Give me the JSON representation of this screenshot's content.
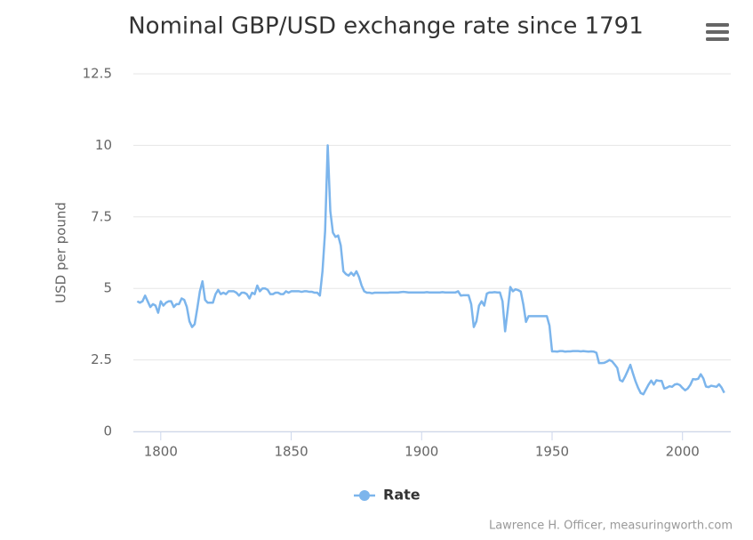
{
  "chart_data": {
    "type": "line",
    "title": "Nominal GBP/USD exchange rate since 1791",
    "y_label": "USD per pound",
    "credits": "Lawrence H. Officer, measuringworth.com",
    "x": [
      1791,
      1792,
      1793,
      1794,
      1795,
      1796,
      1797,
      1798,
      1799,
      1800,
      1801,
      1802,
      1803,
      1804,
      1805,
      1806,
      1807,
      1808,
      1809,
      1810,
      1811,
      1812,
      1813,
      1814,
      1815,
      1816,
      1817,
      1818,
      1819,
      1820,
      1821,
      1822,
      1823,
      1824,
      1825,
      1826,
      1827,
      1828,
      1829,
      1830,
      1831,
      1832,
      1833,
      1834,
      1835,
      1836,
      1837,
      1838,
      1839,
      1840,
      1841,
      1842,
      1843,
      1844,
      1845,
      1846,
      1847,
      1848,
      1849,
      1850,
      1851,
      1852,
      1853,
      1854,
      1855,
      1856,
      1857,
      1858,
      1859,
      1860,
      1861,
      1862,
      1863,
      1864,
      1865,
      1866,
      1867,
      1868,
      1869,
      1870,
      1871,
      1872,
      1873,
      1874,
      1875,
      1876,
      1877,
      1878,
      1879,
      1880,
      1881,
      1882,
      1883,
      1884,
      1885,
      1886,
      1887,
      1888,
      1889,
      1890,
      1891,
      1892,
      1893,
      1894,
      1895,
      1896,
      1897,
      1898,
      1899,
      1900,
      1901,
      1902,
      1903,
      1904,
      1905,
      1906,
      1907,
      1908,
      1909,
      1910,
      1911,
      1912,
      1913,
      1914,
      1915,
      1916,
      1917,
      1918,
      1919,
      1920,
      1921,
      1922,
      1923,
      1924,
      1925,
      1926,
      1927,
      1928,
      1929,
      1930,
      1931,
      1932,
      1933,
      1934,
      1935,
      1936,
      1937,
      1938,
      1939,
      1940,
      1941,
      1942,
      1943,
      1944,
      1945,
      1946,
      1947,
      1948,
      1949,
      1950,
      1951,
      1952,
      1953,
      1954,
      1955,
      1956,
      1957,
      1958,
      1959,
      1960,
      1961,
      1962,
      1963,
      1964,
      1965,
      1966,
      1967,
      1968,
      1969,
      1970,
      1971,
      1972,
      1973,
      1974,
      1975,
      1976,
      1977,
      1978,
      1979,
      1980,
      1981,
      1982,
      1983,
      1984,
      1985,
      1986,
      1987,
      1988,
      1989,
      1990,
      1991,
      1992,
      1993,
      1994,
      1995,
      1996,
      1997,
      1998,
      1999,
      2000,
      2001,
      2002,
      2003,
      2004,
      2005,
      2006,
      2007,
      2008,
      2009,
      2010,
      2011,
      2012,
      2013,
      2014,
      2015,
      2016
    ],
    "series": [
      {
        "name": "Rate",
        "color": "#7cb5ec",
        "values": [
          4.55,
          4.5,
          4.55,
          4.75,
          4.55,
          4.35,
          4.45,
          4.4,
          4.15,
          4.55,
          4.4,
          4.5,
          4.55,
          4.55,
          4.35,
          4.45,
          4.45,
          4.65,
          4.6,
          4.35,
          3.85,
          3.65,
          3.75,
          4.3,
          4.9,
          5.25,
          4.6,
          4.5,
          4.5,
          4.5,
          4.8,
          4.95,
          4.8,
          4.85,
          4.8,
          4.9,
          4.9,
          4.9,
          4.85,
          4.75,
          4.85,
          4.85,
          4.8,
          4.65,
          4.85,
          4.8,
          5.1,
          4.9,
          5.0,
          5.0,
          4.95,
          4.8,
          4.8,
          4.85,
          4.85,
          4.8,
          4.8,
          4.9,
          4.85,
          4.9,
          4.9,
          4.9,
          4.9,
          4.88,
          4.9,
          4.9,
          4.88,
          4.88,
          4.85,
          4.85,
          4.75,
          5.6,
          7.0,
          10.0,
          7.7,
          6.95,
          6.8,
          6.85,
          6.5,
          5.6,
          5.5,
          5.45,
          5.55,
          5.45,
          5.6,
          5.4,
          5.1,
          4.9,
          4.85,
          4.85,
          4.83,
          4.85,
          4.85,
          4.85,
          4.85,
          4.85,
          4.85,
          4.86,
          4.86,
          4.86,
          4.86,
          4.87,
          4.88,
          4.87,
          4.86,
          4.86,
          4.86,
          4.86,
          4.86,
          4.86,
          4.86,
          4.87,
          4.86,
          4.86,
          4.86,
          4.86,
          4.86,
          4.87,
          4.86,
          4.86,
          4.86,
          4.86,
          4.86,
          4.9,
          4.75,
          4.76,
          4.76,
          4.76,
          4.45,
          3.65,
          3.85,
          4.4,
          4.55,
          4.4,
          4.82,
          4.86,
          4.86,
          4.87,
          4.86,
          4.86,
          4.55,
          3.5,
          4.25,
          5.05,
          4.9,
          4.97,
          4.94,
          4.89,
          4.43,
          3.83,
          4.03,
          4.03,
          4.03,
          4.03,
          4.03,
          4.03,
          4.03,
          4.03,
          3.7,
          2.8,
          2.8,
          2.79,
          2.81,
          2.81,
          2.79,
          2.8,
          2.8,
          2.81,
          2.81,
          2.81,
          2.8,
          2.81,
          2.8,
          2.79,
          2.8,
          2.79,
          2.75,
          2.39,
          2.39,
          2.4,
          2.44,
          2.5,
          2.45,
          2.34,
          2.22,
          1.8,
          1.75,
          1.92,
          2.12,
          2.33,
          2.03,
          1.75,
          1.52,
          1.34,
          1.3,
          1.47,
          1.64,
          1.78,
          1.64,
          1.79,
          1.77,
          1.77,
          1.5,
          1.53,
          1.58,
          1.56,
          1.64,
          1.66,
          1.62,
          1.52,
          1.44,
          1.5,
          1.63,
          1.83,
          1.82,
          1.84,
          2.0,
          1.85,
          1.57,
          1.55,
          1.6,
          1.58,
          1.56,
          1.65,
          1.53,
          1.35
        ]
      }
    ],
    "xlim": [
      1789.5,
      2018.5
    ],
    "xticks": [
      1800,
      1850,
      1900,
      1950,
      2000
    ],
    "ylim": [
      0,
      12.5
    ],
    "yticks": [
      0,
      2.5,
      5,
      7.5,
      10,
      12.5
    ],
    "grid": true,
    "legend": "bottom"
  }
}
